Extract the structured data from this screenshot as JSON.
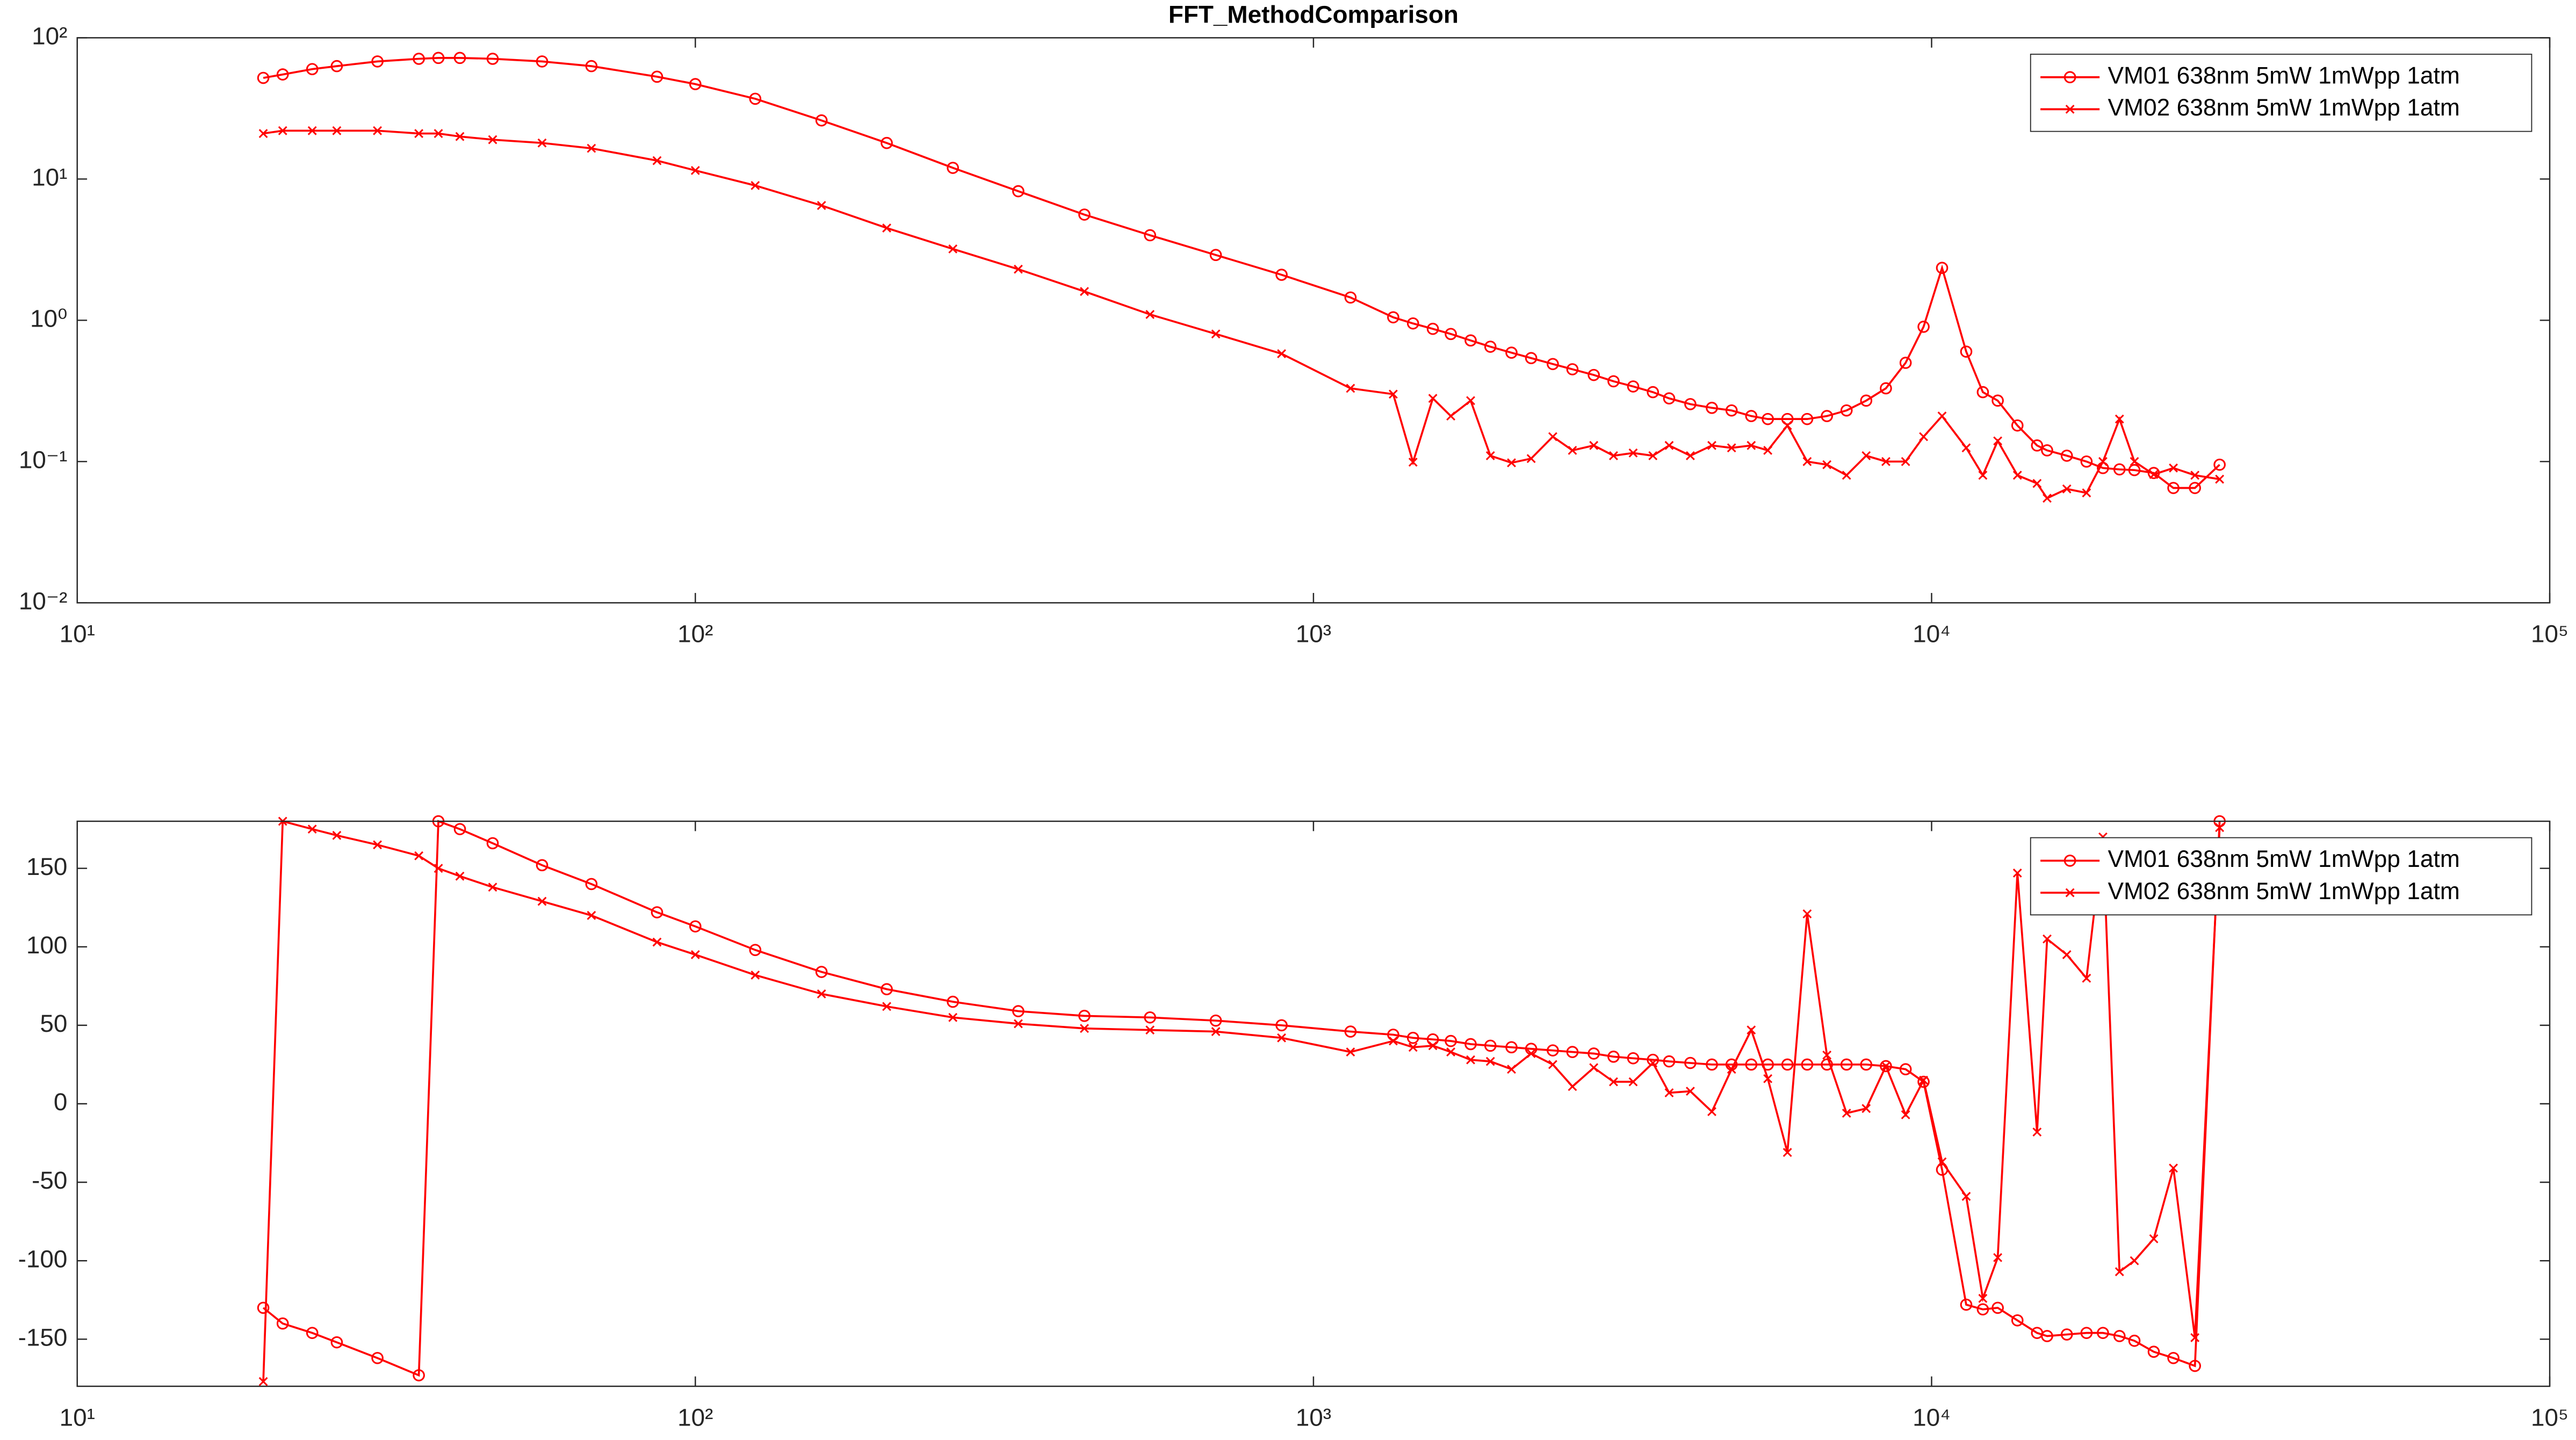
{
  "chart_data": [
    {
      "type": "line",
      "title": "FFT_MethodComparison",
      "xscale": "log",
      "yscale": "log",
      "legend": "upper right",
      "xlim": [
        10,
        100000
      ],
      "xticks": [
        {
          "value": 10,
          "label": "10¹"
        },
        {
          "value": 100,
          "label": "10²"
        },
        {
          "value": 1000,
          "label": "10³"
        },
        {
          "value": 10000,
          "label": "10⁴"
        },
        {
          "value": 100000,
          "label": "10⁵"
        }
      ],
      "ylim": [
        0.01,
        100
      ],
      "yticks": [
        {
          "value": 0.01,
          "label": "10⁻²"
        },
        {
          "value": 0.1,
          "label": "10⁻¹"
        },
        {
          "value": 1,
          "label": "10⁰"
        },
        {
          "value": 10,
          "label": "10¹"
        },
        {
          "value": 100,
          "label": "10²"
        }
      ],
      "x": [
        20,
        21.5,
        24,
        26.3,
        30.6,
        35.7,
        38.4,
        41.6,
        47,
        56.5,
        67.9,
        86.7,
        100,
        125,
        160,
        204,
        261,
        333,
        426,
        544,
        695,
        888,
        1148,
        1346,
        1449,
        1560,
        1668,
        1796,
        1933,
        2091,
        2250,
        2439,
        2624,
        2841,
        3058,
        3290,
        3541,
        3762,
        4071,
        4411,
        4747,
        5108,
        5433,
        5845,
        6291,
        6771,
        7285,
        7838,
        8435,
        9078,
        9706,
        10398,
        11377,
        12104,
        12794,
        13767,
        14813,
        15377,
        16549,
        17810,
        18932,
        20137,
        21287,
        22878,
        24614,
        26670,
        29240
      ],
      "series": [
        {
          "name": "VM01 638nm 5mW 1mWpp 1atm",
          "color": "#ff0000",
          "marker": "o",
          "values": [
            52,
            55,
            60,
            63,
            68,
            71,
            72,
            72,
            71,
            68,
            63,
            53,
            47,
            37,
            26,
            18,
            12,
            8.2,
            5.6,
            4.0,
            2.9,
            2.1,
            1.45,
            1.05,
            0.95,
            0.87,
            0.8,
            0.72,
            0.65,
            0.59,
            0.54,
            0.49,
            0.45,
            0.41,
            0.37,
            0.34,
            0.31,
            0.28,
            0.255,
            0.24,
            0.23,
            0.21,
            0.2,
            0.2,
            0.2,
            0.21,
            0.23,
            0.27,
            0.33,
            0.5,
            0.9,
            2.35,
            0.6,
            0.31,
            0.27,
            0.18,
            0.13,
            0.12,
            0.11,
            0.1,
            0.09,
            0.088,
            0.087,
            0.083,
            0.065,
            0.065,
            0.095
          ]
        },
        {
          "name": "VM02 638nm 5mW 1mWpp 1atm",
          "color": "#ff0000",
          "marker": "x",
          "values": [
            21,
            22,
            22,
            22,
            22,
            21,
            21,
            20,
            19,
            18,
            16.5,
            13.5,
            11.5,
            9,
            6.5,
            4.5,
            3.2,
            2.3,
            1.6,
            1.1,
            0.8,
            0.58,
            0.33,
            0.3,
            0.099,
            0.28,
            0.21,
            0.27,
            0.11,
            0.098,
            0.105,
            0.15,
            0.12,
            0.13,
            0.11,
            0.115,
            0.11,
            0.13,
            0.11,
            0.13,
            0.125,
            0.13,
            0.12,
            0.18,
            0.1,
            0.095,
            0.08,
            0.11,
            0.1,
            0.1,
            0.15,
            0.21,
            0.125,
            0.08,
            0.14,
            0.08,
            0.07,
            0.055,
            0.064,
            0.06,
            0.1,
            0.2,
            0.1,
            0.081,
            0.09,
            0.08,
            0.075
          ]
        }
      ]
    },
    {
      "type": "line",
      "xscale": "log",
      "yscale": "linear",
      "legend": "upper right",
      "xlim": [
        10,
        100000
      ],
      "xticks": [
        {
          "value": 10,
          "label": "10¹"
        },
        {
          "value": 100,
          "label": "10²"
        },
        {
          "value": 1000,
          "label": "10³"
        },
        {
          "value": 10000,
          "label": "10⁴"
        },
        {
          "value": 100000,
          "label": "10⁵"
        }
      ],
      "ylim": [
        -180,
        180
      ],
      "yticks": [
        -150,
        -100,
        -50,
        0,
        50,
        100,
        150
      ],
      "x": [
        20,
        21.5,
        24,
        26.3,
        30.6,
        35.7,
        38.4,
        41.6,
        47,
        56.5,
        67.9,
        86.7,
        100,
        125,
        160,
        204,
        261,
        333,
        426,
        544,
        695,
        888,
        1148,
        1346,
        1449,
        1560,
        1668,
        1796,
        1933,
        2091,
        2250,
        2439,
        2624,
        2841,
        3058,
        3290,
        3541,
        3762,
        4071,
        4411,
        4747,
        5108,
        5433,
        5845,
        6291,
        6771,
        7285,
        7838,
        8435,
        9078,
        9706,
        10398,
        11377,
        12104,
        12794,
        13767,
        14813,
        15377,
        16549,
        17810,
        18932,
        20137,
        21287,
        22878,
        24614,
        26670,
        29240
      ],
      "series": [
        {
          "name": "VM01 638nm 5mW 1mWpp 1atm",
          "color": "#ff0000",
          "marker": "o",
          "values": [
            -130,
            -140,
            -146,
            -152,
            -162,
            -173,
            180,
            175,
            166,
            152,
            140,
            122,
            113,
            98,
            84,
            73,
            65,
            59,
            56,
            55,
            53,
            50,
            46,
            44,
            42,
            41,
            40,
            38,
            37,
            36,
            35,
            34,
            33,
            32,
            30,
            29,
            28,
            27,
            26,
            25,
            25,
            25,
            25,
            25,
            25,
            25,
            25,
            25,
            24,
            22,
            14,
            -42,
            -128,
            -131,
            -130,
            -138,
            -146,
            -148,
            -147,
            -146,
            -146,
            -148,
            -151,
            -158,
            -162,
            -167,
            180
          ]
        },
        {
          "name": "VM02 638nm 5mW 1mWpp 1atm",
          "color": "#ff0000",
          "marker": "x",
          "values": [
            -177,
            180,
            175,
            171,
            165,
            158,
            150,
            145,
            138,
            129,
            120,
            103,
            95,
            82,
            70,
            62,
            55,
            51,
            48,
            47,
            46,
            42,
            33,
            40,
            36,
            37,
            33,
            28,
            27,
            22,
            32,
            25,
            11,
            23,
            14,
            14,
            26,
            7,
            8,
            -5,
            22,
            47,
            16,
            -31,
            121,
            31,
            -6,
            -3,
            24,
            -7,
            15,
            -37,
            -59,
            -124,
            -98,
            147,
            -18,
            105,
            95,
            80,
            170,
            -107,
            -100,
            -86,
            -41,
            -149,
            176
          ]
        }
      ]
    }
  ]
}
